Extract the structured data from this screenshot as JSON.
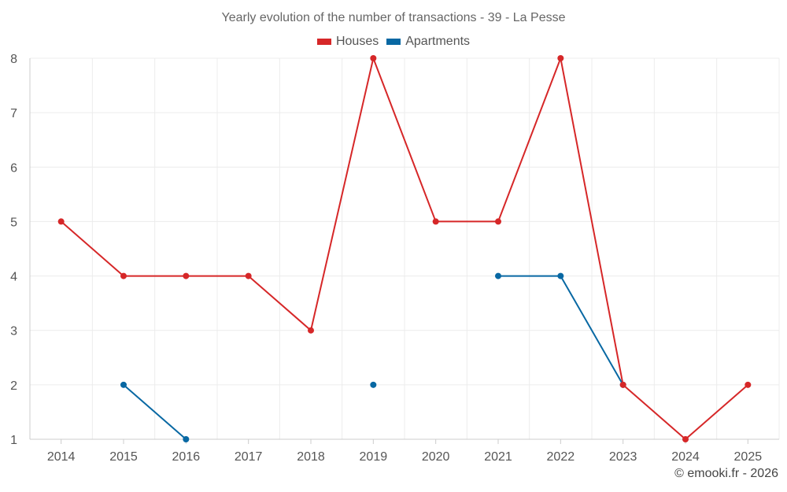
{
  "chart_data": {
    "type": "line",
    "title": "Yearly evolution of the number of transactions - 39 - La Pesse",
    "xlabel": "",
    "ylabel": "",
    "ylim": [
      1,
      8
    ],
    "yticks": [
      1,
      2,
      3,
      4,
      5,
      6,
      7,
      8
    ],
    "categories": [
      "2014",
      "2015",
      "2016",
      "2017",
      "2018",
      "2019",
      "2020",
      "2021",
      "2022",
      "2023",
      "2024",
      "2025"
    ],
    "grid": true,
    "legend_position": "top-center",
    "series": [
      {
        "name": "Houses",
        "color": "#d62728",
        "values": [
          5,
          4,
          4,
          4,
          3,
          8,
          5,
          5,
          8,
          2,
          1,
          2
        ]
      },
      {
        "name": "Apartments",
        "color": "#0868a3",
        "values": [
          null,
          2,
          1,
          null,
          null,
          2,
          null,
          4,
          4,
          2,
          null,
          null
        ]
      }
    ]
  },
  "credit": "© emooki.fr - 2026"
}
